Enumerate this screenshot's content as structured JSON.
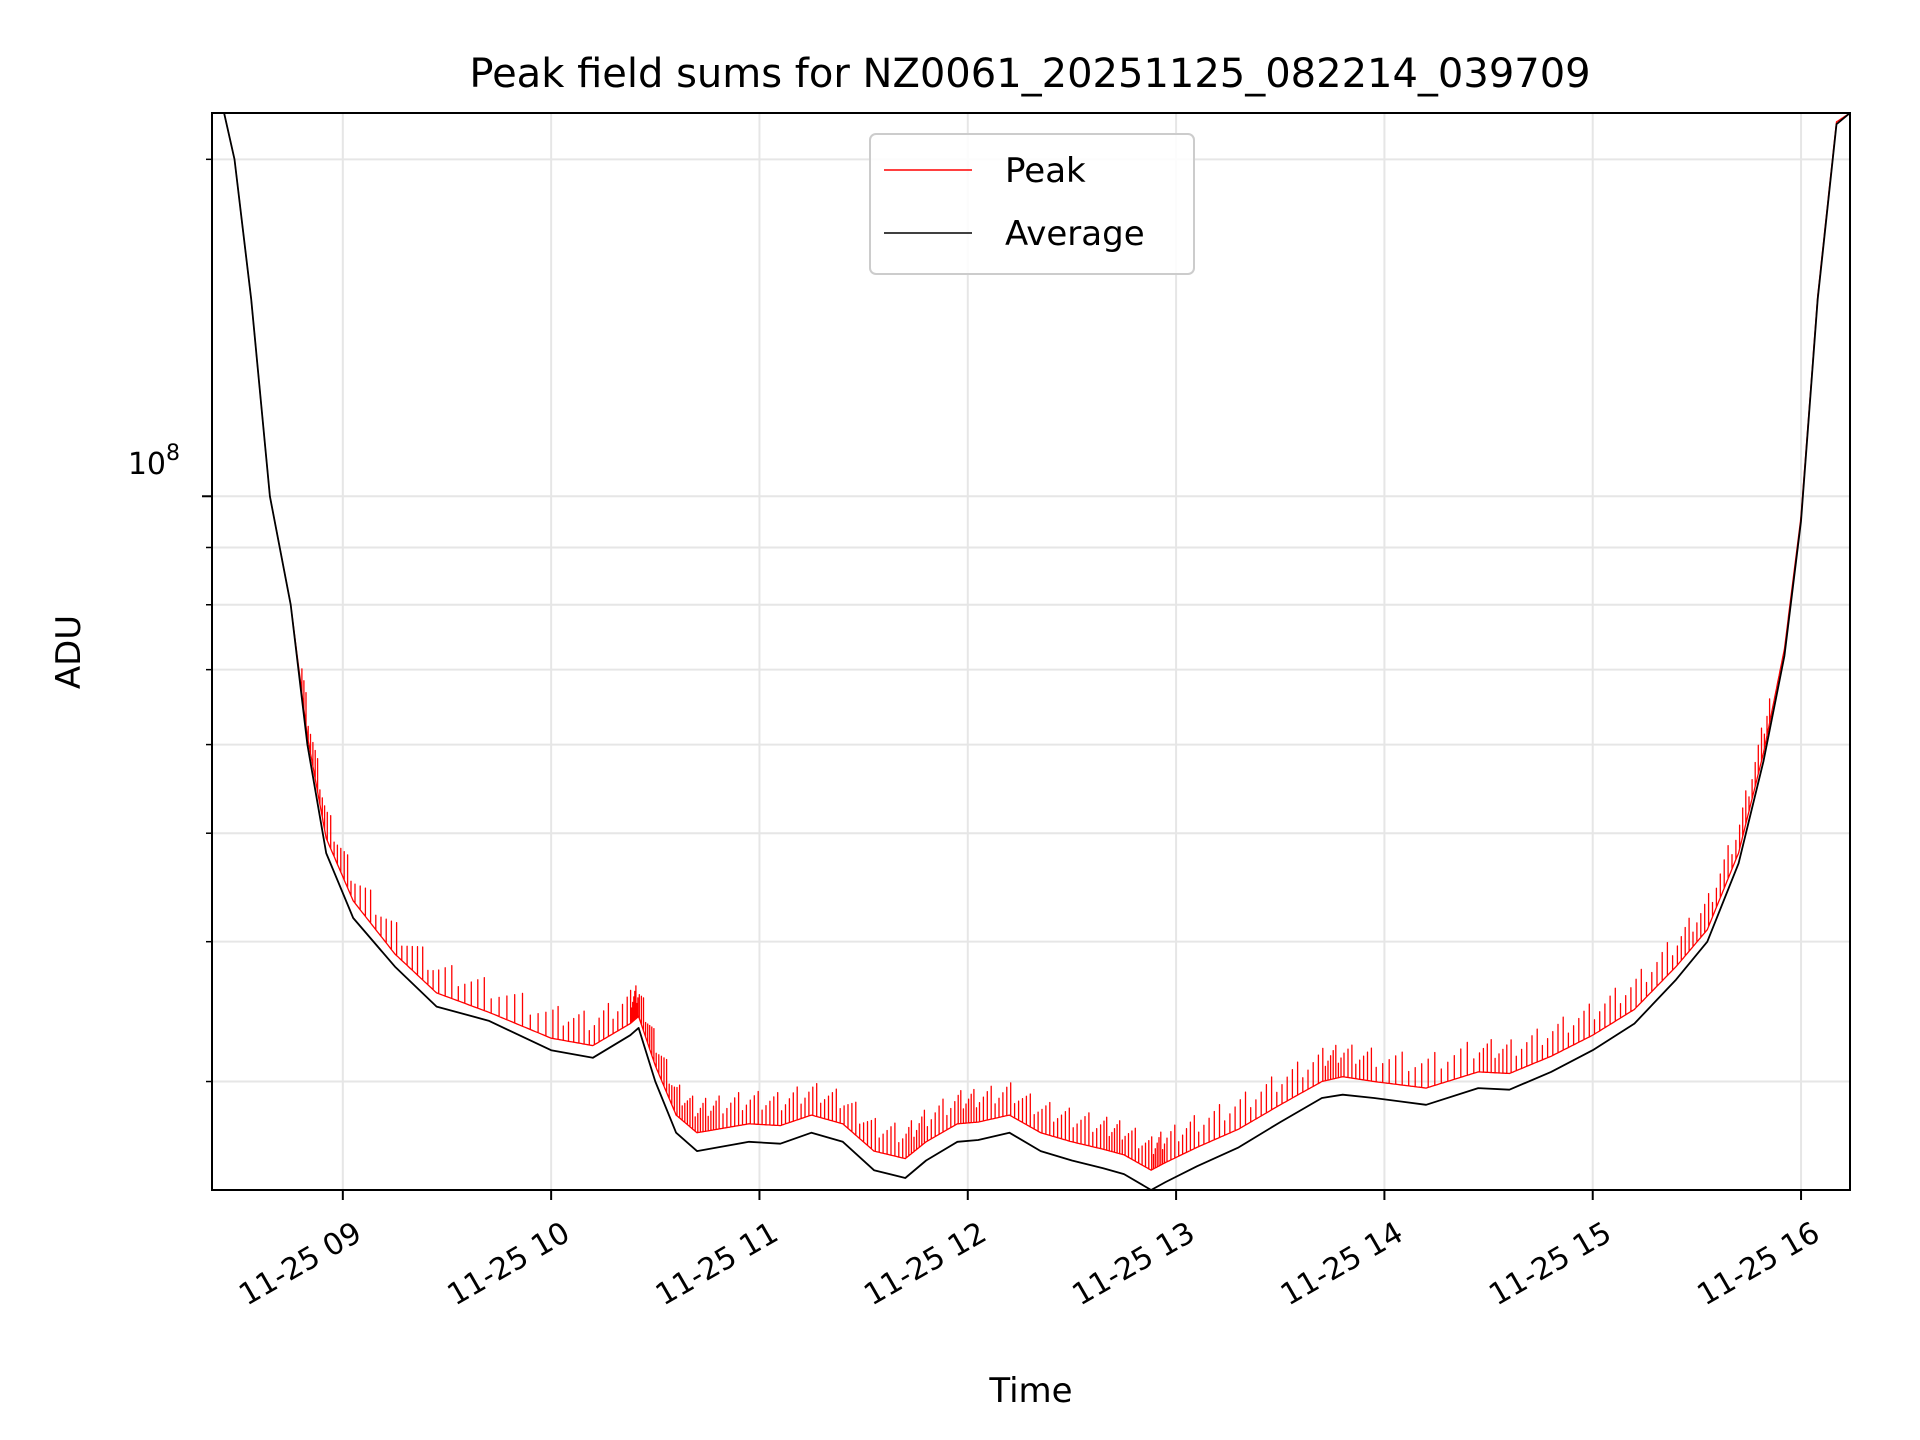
{
  "chart_data": {
    "type": "line",
    "title": "Peak field sums for NZ0061_20251125_082214_039709",
    "xlabel": "Time",
    "ylabel": "ADU",
    "yscale": "log",
    "grid": true,
    "legend_position": "top-center",
    "xlim": [
      8.372,
      16.235
    ],
    "ylim": [
      24000000,
      220000000
    ],
    "x_ticks": [
      {
        "value": 9,
        "label": "11-25 09"
      },
      {
        "value": 10,
        "label": "11-25 10"
      },
      {
        "value": 11,
        "label": "11-25 11"
      },
      {
        "value": 12,
        "label": "11-25 12"
      },
      {
        "value": 13,
        "label": "11-25 13"
      },
      {
        "value": 14,
        "label": "11-25 14"
      },
      {
        "value": 15,
        "label": "11-25 15"
      },
      {
        "value": 16,
        "label": "11-25 16"
      }
    ],
    "y_major_tick": {
      "value": 100000000,
      "label_base": "10",
      "label_exp": "8"
    },
    "y_minor_ticks": [
      30000000,
      40000000,
      50000000,
      60000000,
      70000000,
      80000000,
      90000000,
      200000000
    ],
    "series": [
      {
        "name": "Average",
        "color": "#000000",
        "x": [
          8.372,
          8.43,
          8.48,
          8.56,
          8.65,
          8.75,
          8.83,
          8.92,
          9.05,
          9.25,
          9.45,
          9.7,
          10.0,
          10.2,
          10.38,
          10.42,
          10.5,
          10.6,
          10.7,
          10.8,
          10.95,
          11.1,
          11.25,
          11.4,
          11.55,
          11.7,
          11.8,
          11.95,
          12.05,
          12.2,
          12.35,
          12.5,
          12.65,
          12.75,
          12.88,
          12.95,
          13.1,
          13.3,
          13.5,
          13.7,
          13.8,
          13.95,
          14.2,
          14.45,
          14.6,
          14.8,
          15.0,
          15.2,
          15.4,
          15.55,
          15.7,
          15.82,
          15.92,
          16.0,
          16.08,
          16.17,
          16.235
        ],
        "values": [
          220000000,
          220000000,
          200000000,
          150000000,
          100000000,
          80000000,
          60000000,
          48000000,
          42000000,
          38000000,
          35000000,
          34000000,
          32000000,
          31500000,
          33000000,
          33500000,
          30000000,
          27000000,
          26000000,
          26200000,
          26500000,
          26400000,
          27000000,
          26500000,
          25000000,
          24600000,
          25500000,
          26500000,
          26600000,
          27000000,
          26000000,
          25500000,
          25100000,
          24800000,
          24000000,
          24400000,
          25200000,
          26200000,
          27600000,
          29000000,
          29200000,
          29000000,
          28600000,
          29600000,
          29500000,
          30600000,
          32000000,
          33800000,
          37000000,
          40000000,
          47000000,
          58000000,
          72000000,
          95000000,
          150000000,
          215000000,
          220000000
        ]
      },
      {
        "name": "Peak",
        "color": "#ff0000",
        "x": [
          8.372,
          8.43,
          8.48,
          8.56,
          8.65,
          8.75,
          8.83,
          8.92,
          9.05,
          9.25,
          9.45,
          9.7,
          10.0,
          10.2,
          10.38,
          10.42,
          10.5,
          10.6,
          10.7,
          10.8,
          10.95,
          11.1,
          11.25,
          11.4,
          11.55,
          11.7,
          11.8,
          11.95,
          12.05,
          12.2,
          12.35,
          12.5,
          12.65,
          12.75,
          12.88,
          12.95,
          13.1,
          13.3,
          13.5,
          13.7,
          13.8,
          13.95,
          14.2,
          14.45,
          14.6,
          14.8,
          15.0,
          15.2,
          15.4,
          15.55,
          15.7,
          15.82,
          15.92,
          16.0,
          16.08,
          16.17,
          16.235
        ],
        "values": [
          220000000,
          220000000,
          200000000,
          150000000,
          100000000,
          80000000,
          61000000,
          49500000,
          43500000,
          39000000,
          36000000,
          34600000,
          32800000,
          32300000,
          33800000,
          34300000,
          31000000,
          28000000,
          27000000,
          27200000,
          27500000,
          27400000,
          28000000,
          27500000,
          26000000,
          25600000,
          26500000,
          27500000,
          27600000,
          28000000,
          27000000,
          26500000,
          26100000,
          25800000,
          25000000,
          25400000,
          26200000,
          27200000,
          28600000,
          30000000,
          30300000,
          30000000,
          29600000,
          30600000,
          30500000,
          31600000,
          33000000,
          34800000,
          38000000,
          41000000,
          48000000,
          59000000,
          73000000,
          96000000,
          151000000,
          216000000,
          220000000
        ]
      }
    ],
    "legend": [
      {
        "name": "Peak",
        "color": "#ff0000"
      },
      {
        "name": "Average",
        "color": "#000000"
      }
    ]
  }
}
